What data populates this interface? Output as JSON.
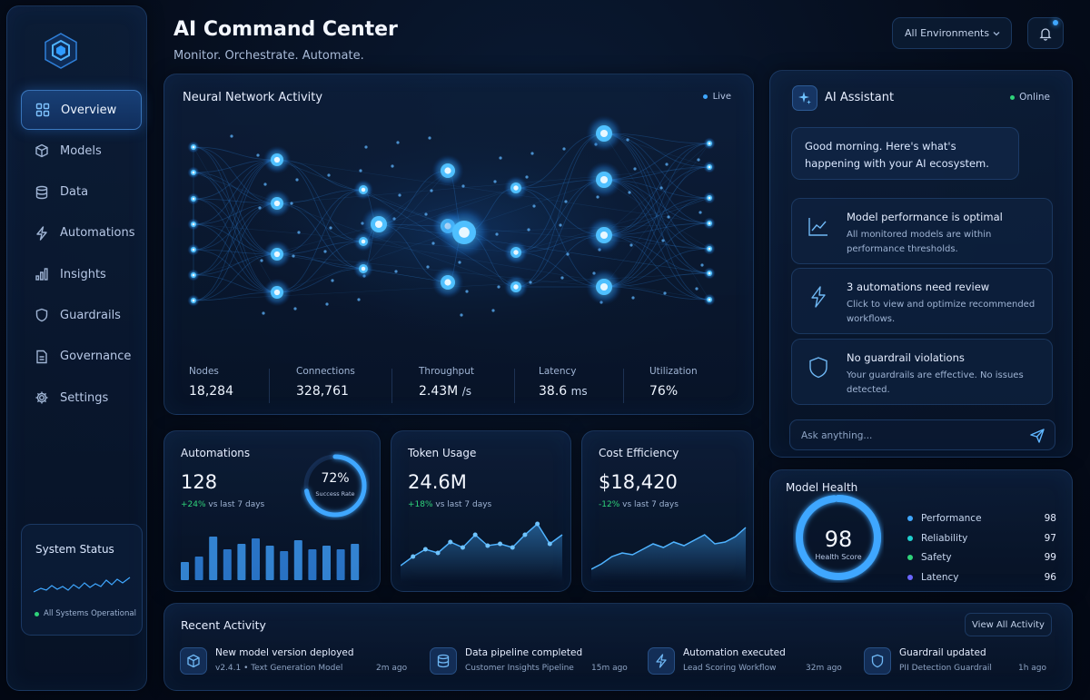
{
  "header": {
    "title": "AI Command Center",
    "subtitle": "Monitor. Orchestrate. Automate.",
    "environment": "All Environments"
  },
  "sidebar": {
    "items": [
      {
        "label": "Overview",
        "icon": "grid-icon",
        "active": true
      },
      {
        "label": "Models",
        "icon": "cube-icon"
      },
      {
        "label": "Data",
        "icon": "database-icon"
      },
      {
        "label": "Automations",
        "icon": "bolt-icon"
      },
      {
        "label": "Insights",
        "icon": "bar-chart-icon"
      },
      {
        "label": "Guardrails",
        "icon": "shield-icon"
      },
      {
        "label": "Governance",
        "icon": "document-icon"
      },
      {
        "label": "Settings",
        "icon": "gear-icon"
      }
    ],
    "system_status": {
      "title": "System Status",
      "status": "All Systems Operational"
    }
  },
  "neural": {
    "title": "Neural Network Activity",
    "live": "Live",
    "stats": [
      {
        "label": "Nodes",
        "value": "18,284",
        "unit": ""
      },
      {
        "label": "Connections",
        "value": "328,761",
        "unit": ""
      },
      {
        "label": "Throughput",
        "value": "2.43M",
        "unit": "/s"
      },
      {
        "label": "Latency",
        "value": "38.6",
        "unit": "ms"
      },
      {
        "label": "Utilization",
        "value": "76%",
        "unit": ""
      }
    ]
  },
  "assistant": {
    "title": "AI Assistant",
    "status": "Online",
    "greeting": "Good morning. Here's what's happening with your AI ecosystem.",
    "cards": [
      {
        "title": "Model performance is optimal",
        "desc": "All monitored models are within performance thresholds.",
        "icon": "trend-icon"
      },
      {
        "title": "3 automations need review",
        "desc": "Click to view and optimize recommended workflows.",
        "icon": "bolt-icon"
      },
      {
        "title": "No guardrail violations",
        "desc": "Your guardrails are effective. No issues detected.",
        "icon": "shield-icon"
      }
    ],
    "input_placeholder": "Ask anything..."
  },
  "automations": {
    "title": "Automations",
    "value": "128",
    "change": "+24%",
    "change_suffix": "vs last 7 days",
    "ring_value": "72%",
    "ring_fraction": 0.72,
    "ring_label": "Success Rate"
  },
  "tokens": {
    "title": "Token Usage",
    "value": "24.6M",
    "change": "+18%",
    "change_suffix": "vs last 7 days"
  },
  "cost": {
    "title": "Cost Efficiency",
    "value": "$18,420",
    "change": "-12%",
    "change_suffix": "vs last 7 days"
  },
  "health": {
    "title": "Model Health",
    "score": "98",
    "score_fraction": 0.98,
    "score_label": "Health Score",
    "metrics": [
      {
        "label": "Performance",
        "value": "98",
        "color": "#3fa7ff"
      },
      {
        "label": "Reliability",
        "value": "97",
        "color": "#1fd0d0"
      },
      {
        "label": "Safety",
        "value": "99",
        "color": "#2fd37a"
      },
      {
        "label": "Latency",
        "value": "96",
        "color": "#6a66ff"
      }
    ]
  },
  "recent": {
    "title": "Recent Activity",
    "view_all": "View All Activity",
    "items": [
      {
        "title": "New model version deployed",
        "desc": "v2.4.1 • Text Generation Model",
        "time": "2m ago",
        "icon": "cube-icon"
      },
      {
        "title": "Data pipeline completed",
        "desc": "Customer Insights Pipeline",
        "time": "15m ago",
        "icon": "database-icon"
      },
      {
        "title": "Automation executed",
        "desc": "Lead Scoring Workflow",
        "time": "32m ago",
        "icon": "bolt-icon"
      },
      {
        "title": "Guardrail updated",
        "desc": "PII Detection Guardrail",
        "time": "1h ago",
        "icon": "shield-icon"
      }
    ]
  },
  "colors": {
    "accent": "#3fa7ff",
    "success": "#2fd37a",
    "background": "#050c1a"
  }
}
